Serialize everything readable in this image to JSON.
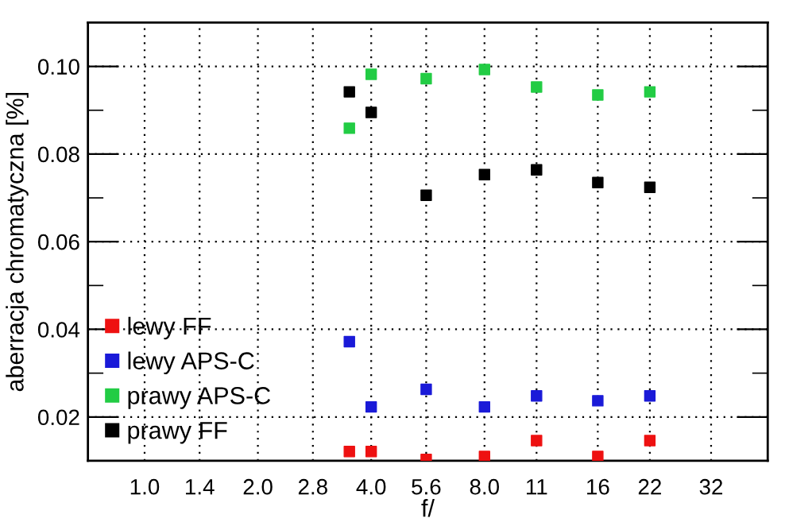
{
  "chart_data": {
    "type": "scatter",
    "xlabel": "f/",
    "ylabel": "aberracja chromatyczna [%]",
    "log": "x",
    "marker": "square",
    "grid": true,
    "legend": "bottom left",
    "x": [
      3.5,
      4,
      5.6,
      8,
      11,
      16,
      22
    ],
    "xlim": [
      0.707,
      45.25
    ],
    "xticks": [
      {
        "value": 1,
        "label": "1.0"
      },
      {
        "value": 1.4,
        "label": "1.4"
      },
      {
        "value": 2,
        "label": "2.0"
      },
      {
        "value": 2.8,
        "label": "2.8"
      },
      {
        "value": 4,
        "label": "4.0"
      },
      {
        "value": 5.6,
        "label": "5.6"
      },
      {
        "value": 8,
        "label": "8.0"
      },
      11,
      16,
      22,
      32
    ],
    "ylim": [
      0.01,
      0.11
    ],
    "yticks": [
      {
        "value": 0.02,
        "label": "0.02"
      },
      {
        "value": 0.03,
        "label": null
      },
      {
        "value": 0.04,
        "label": "0.04"
      },
      {
        "value": 0.05,
        "label": null
      },
      {
        "value": 0.06,
        "label": "0.06"
      },
      {
        "value": 0.07,
        "label": null
      },
      {
        "value": 0.08,
        "label": "0.08"
      },
      {
        "value": 0.09,
        "label": null
      },
      {
        "value": 0.1,
        "label": "0.10"
      }
    ],
    "series": [
      {
        "name": "lewy FF",
        "color": "#ee1111",
        "values": [
          0.0121,
          0.0121,
          0.0103,
          0.011,
          0.0146,
          0.011,
          0.0146
        ]
      },
      {
        "name": "lewy APS-C",
        "color": "#1a1ad8",
        "values": [
          0.0372,
          0.0223,
          0.0263,
          0.0223,
          0.0248,
          0.0237,
          0.0248
        ]
      },
      {
        "name": "prawy APS-C",
        "color": "#22cc44",
        "values": [
          0.0859,
          0.0982,
          0.0972,
          0.0993,
          0.0953,
          0.0935,
          0.0942
        ]
      },
      {
        "name": "prawy FF",
        "color": "#000000",
        "values": [
          0.0942,
          0.0895,
          0.0706,
          0.0753,
          0.0764,
          0.0735,
          0.0724
        ]
      }
    ]
  }
}
